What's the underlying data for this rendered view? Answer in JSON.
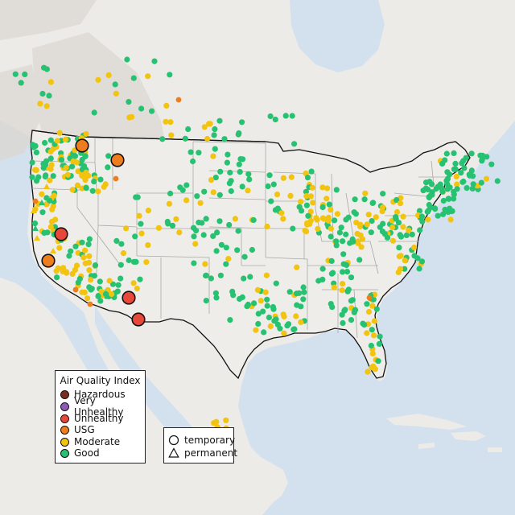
{
  "legend": {
    "title": "Air Quality Index",
    "categories": [
      {
        "label": "Hazardous",
        "color": "#7a2e1f"
      },
      {
        "label": "Very Unhealthy",
        "color": "#8d5ab8"
      },
      {
        "label": "Unhealthy",
        "color": "#e8483a"
      },
      {
        "label": "USG",
        "color": "#ee7d1e"
      },
      {
        "label": "Moderate",
        "color": "#f2c30f"
      },
      {
        "label": "Good",
        "color": "#27c172"
      }
    ]
  },
  "monitor_types": [
    {
      "label": "temporary",
      "shape": "circle"
    },
    {
      "label": "permanent",
      "shape": "triangle"
    }
  ],
  "colors": {
    "ocean": "#d3e1ee",
    "land_foreign": "#ecebe8",
    "land_us": "#eeede9",
    "mountain": "#dcd6d0",
    "state_border": "#a8a8a8",
    "national_border": "#111111",
    "good": "#27c172",
    "moderate": "#f2c30f",
    "usg": "#ee7d1e",
    "unhealthy": "#e8483a",
    "no_data": "#b9bfc6"
  }
}
